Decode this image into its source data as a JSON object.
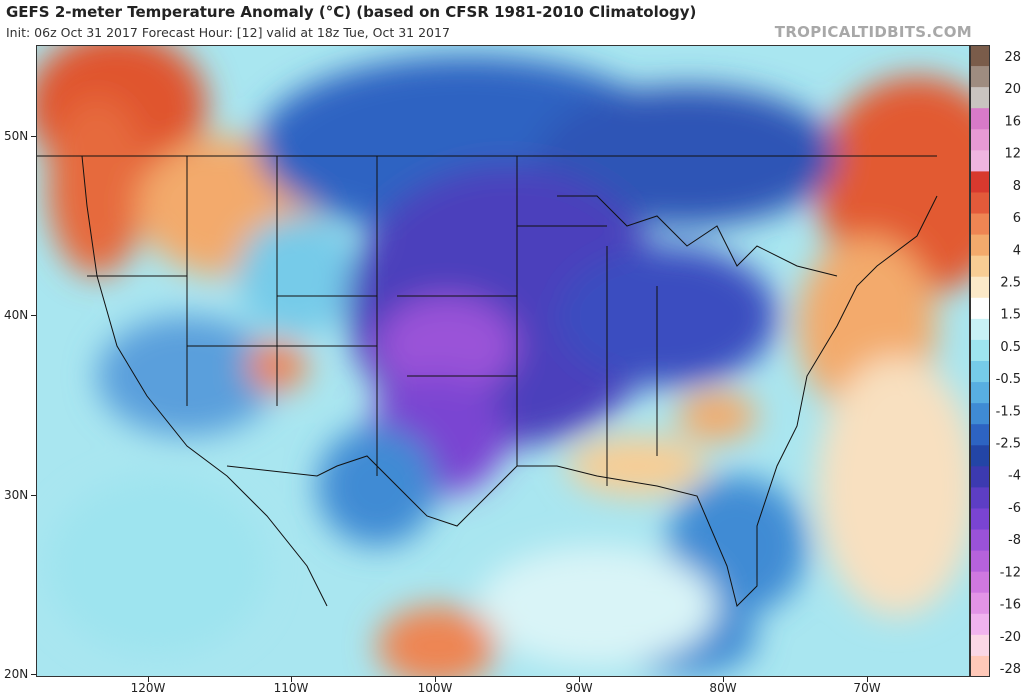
{
  "title": "GEFS 2-meter Temperature Anomaly (°C) (based on CFSR 1981-2010 Climatology)",
  "subtitle": "Init: 06z Oct 31 2017   Forecast Hour: [12]   valid at 18z Tue, Oct 31 2017",
  "brand": "TROPICALTIDBITS.COM",
  "lat_labels": [
    "50N",
    "40N",
    "30N",
    "20N"
  ],
  "lon_labels": [
    "120W",
    "110W",
    "100W",
    "90W",
    "80W",
    "70W"
  ],
  "legend": {
    "labels": [
      "28",
      "20",
      "16",
      "12",
      "8",
      "6",
      "4",
      "2.5",
      "1.5",
      "0.5",
      "-0.5",
      "-1.5",
      "-2.5",
      "-4",
      "-6",
      "-8",
      "-12",
      "-16",
      "-20",
      "-28"
    ],
    "colors": [
      "#7a5c4a",
      "#9e8c80",
      "#c9c4c0",
      "#d87ac8",
      "#e79ad4",
      "#efb5e0",
      "#d8392e",
      "#e35a3a",
      "#ee8553",
      "#f3aa6c",
      "#f8cd94",
      "#fce9c8",
      "#ffffff",
      "#c8f2f6",
      "#9ee4ef",
      "#76cbe9",
      "#58aee1",
      "#3f8bd4",
      "#2d63c2",
      "#2345a6",
      "#3c3ab0",
      "#5d3ec4",
      "#7a44d2",
      "#9a52d8",
      "#b662dc",
      "#cf78e0",
      "#e294e6",
      "#f0b3ee",
      "#fad7e6",
      "#ffc8b8"
    ]
  }
}
